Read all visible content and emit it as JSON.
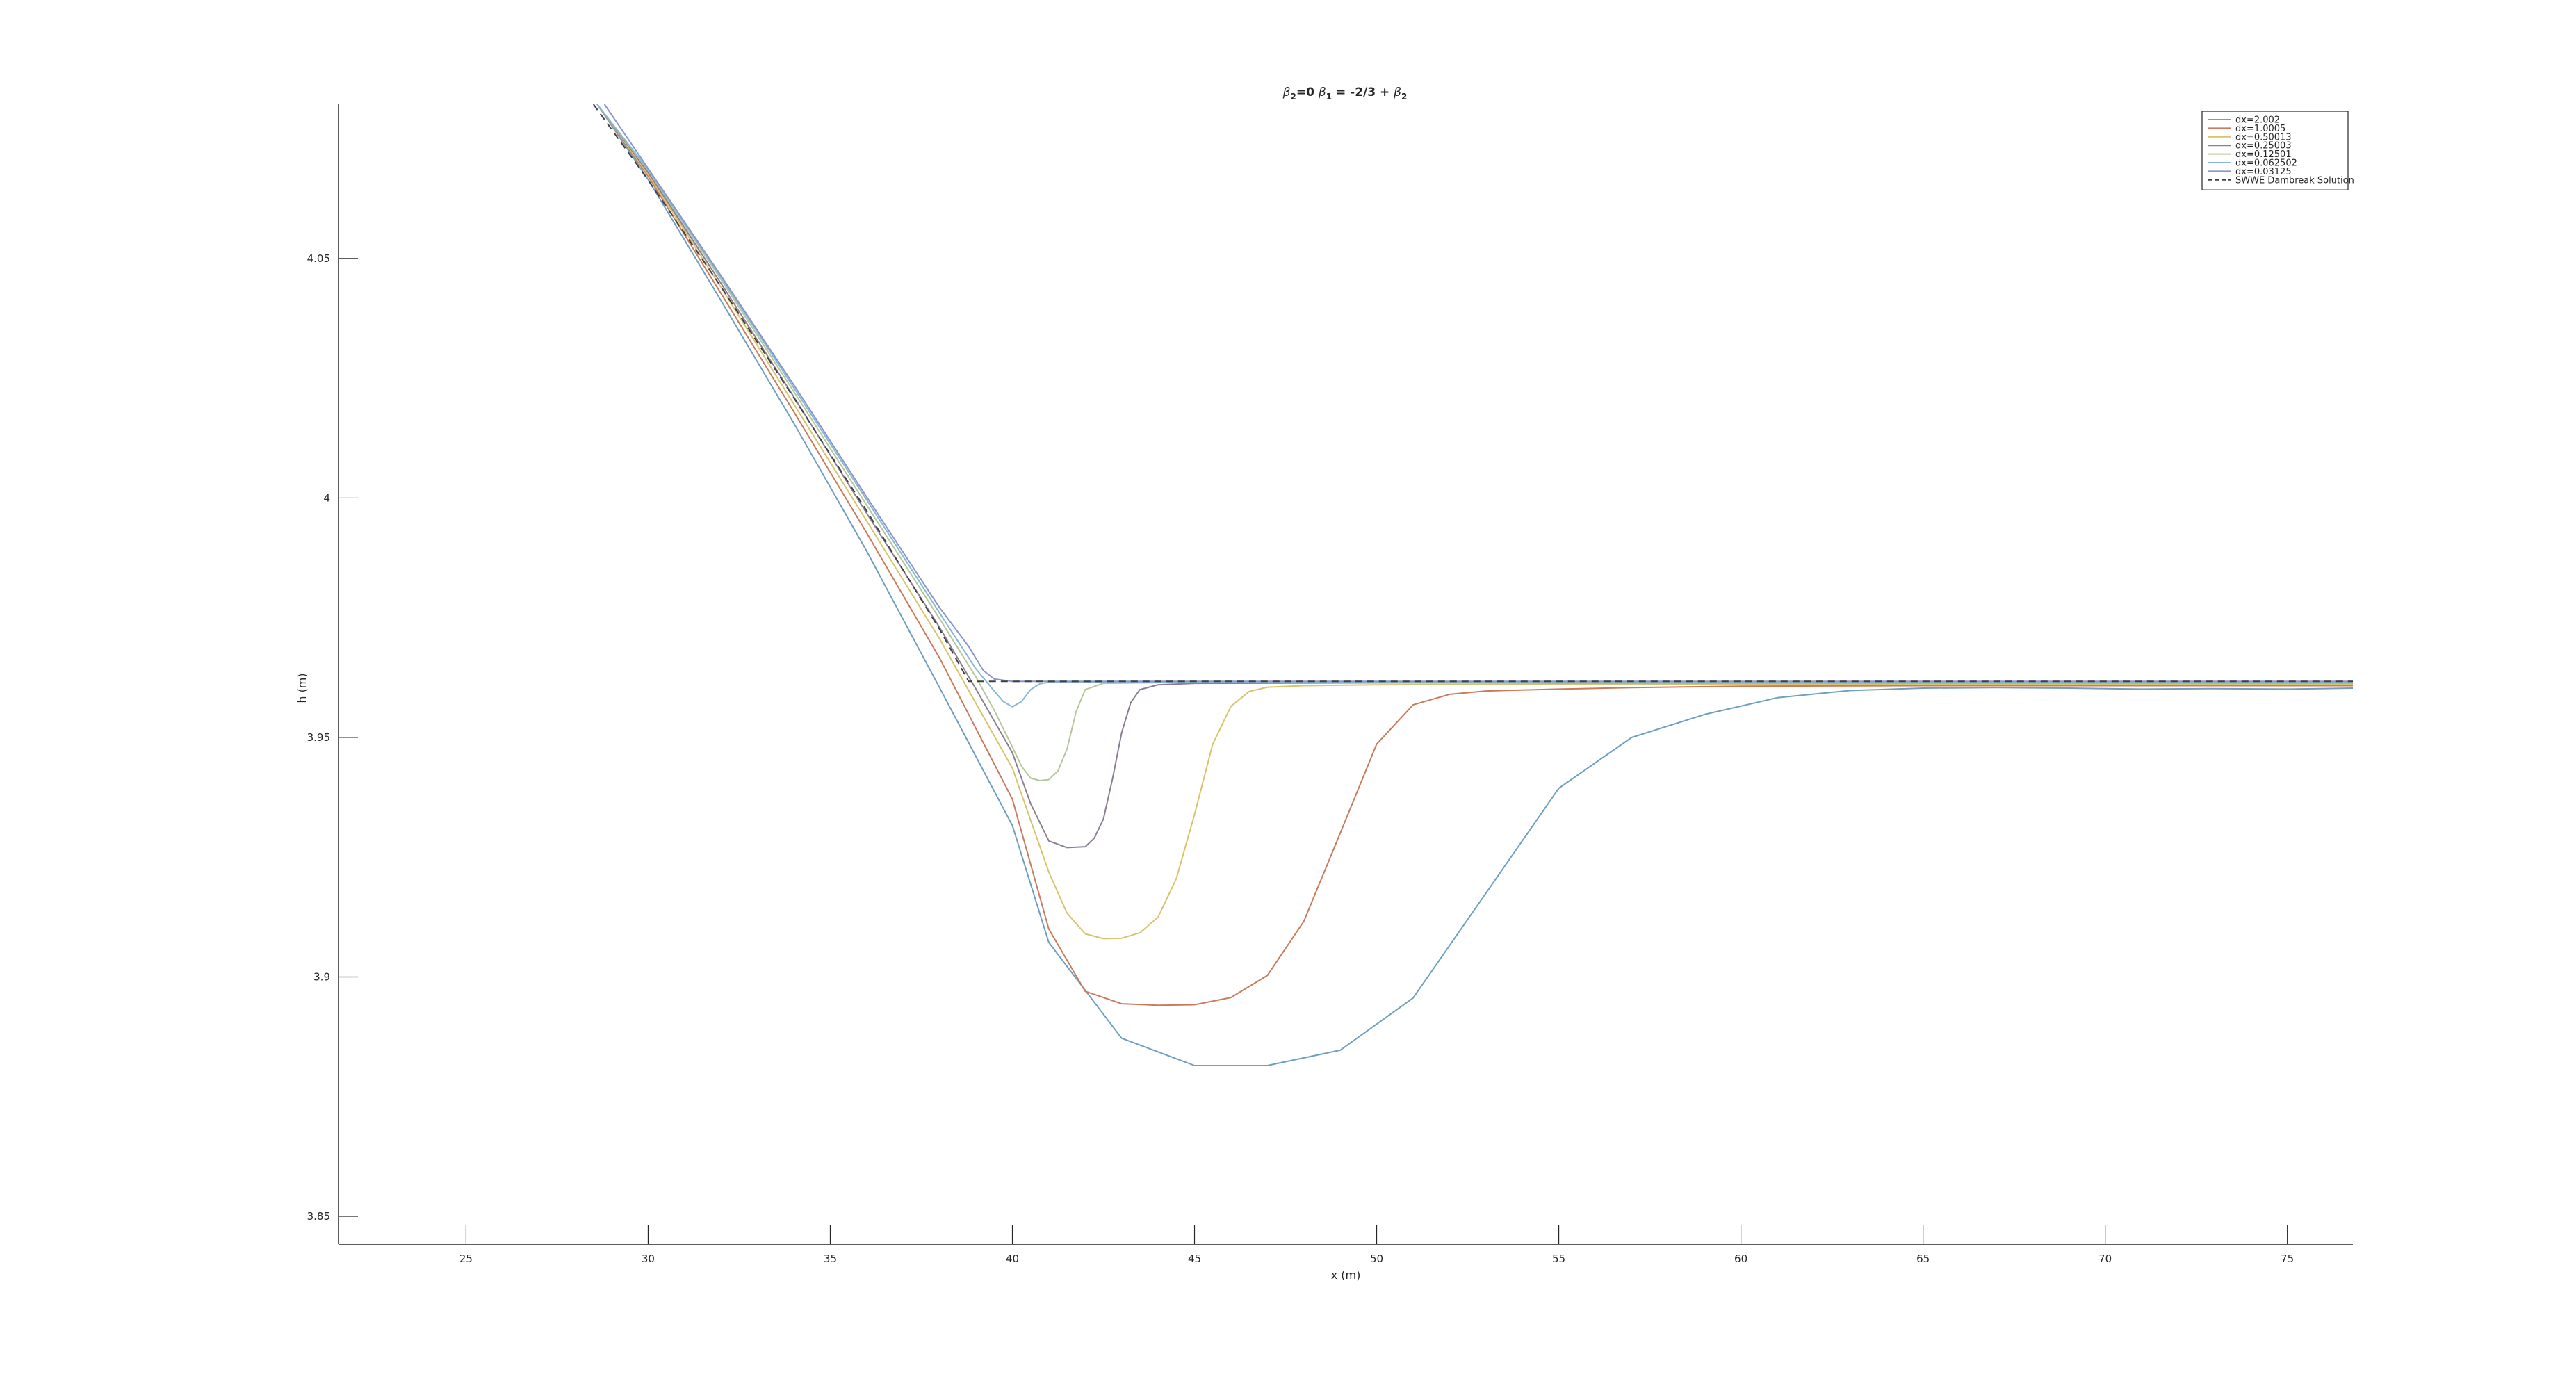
{
  "chart_data": {
    "type": "line",
    "title_parts": [
      {
        "text": "β",
        "sub": "2",
        "rest": "=0  "
      },
      {
        "text": "β",
        "sub": "1",
        "rest": " = -2/3 + "
      },
      {
        "text": "β",
        "sub": "2",
        "rest": ""
      }
    ],
    "xlabel": "x (m)",
    "ylabel": "h (m)",
    "xlim": [
      21.5,
      76.8
    ],
    "ylim": [
      3.8442,
      4.0822
    ],
    "xticks": [
      25,
      30,
      35,
      40,
      45,
      50,
      55,
      60,
      65,
      70,
      75
    ],
    "xtick_labels": [
      "25",
      "30",
      "35",
      "40",
      "45",
      "50",
      "55",
      "60",
      "65",
      "70",
      "75"
    ],
    "yticks": [
      3.85,
      3.9,
      3.95,
      4,
      4.05
    ],
    "ytick_labels": [
      "3.85",
      "3.9",
      "3.95",
      "4",
      "4.05"
    ],
    "grid": false,
    "legend_position": "top-right",
    "series": [
      {
        "name": "dx=2.002",
        "color": "#6f9fc0",
        "dash": false,
        "x": [
          28.6,
          30,
          32,
          34,
          36,
          38,
          40,
          41,
          43,
          45,
          47,
          49,
          51,
          53,
          55,
          57,
          59,
          61,
          63,
          65,
          67,
          69,
          71,
          73,
          75,
          76.8
        ],
        "y": [
          4.0822,
          4.0665,
          4.0412,
          4.0156,
          3.9889,
          3.9604,
          3.9316,
          3.9072,
          3.8872,
          3.8815,
          3.8815,
          3.8847,
          3.8956,
          3.9175,
          3.9394,
          3.95,
          3.9548,
          3.9583,
          3.9598,
          3.9603,
          3.9604,
          3.9603,
          3.9601,
          3.9602,
          3.9601,
          3.9603
        ]
      },
      {
        "name": "dx=1.0005",
        "color": "#c97b5b",
        "dash": false,
        "x": [
          28.6,
          30,
          32,
          34,
          36,
          38,
          40,
          41,
          42,
          43,
          44,
          45,
          46,
          47,
          48,
          49,
          50,
          51,
          52,
          53,
          55,
          57,
          60,
          65,
          70,
          76.8
        ],
        "y": [
          4.0822,
          4.0672,
          4.0427,
          4.018,
          3.9927,
          3.9666,
          3.9371,
          3.91,
          3.897,
          3.8944,
          3.8941,
          3.8942,
          3.8957,
          3.9003,
          3.9116,
          3.93,
          3.9486,
          3.9568,
          3.959,
          3.9597,
          3.9601,
          3.9604,
          3.9607,
          3.9608,
          3.9608,
          3.9608
        ]
      },
      {
        "name": "dx=0.50013",
        "color": "#d8c46a",
        "dash": false,
        "x": [
          28.6,
          30,
          32,
          34,
          36,
          38,
          40,
          41,
          41.5,
          42,
          42.5,
          43,
          43.5,
          44,
          44.5,
          45,
          45.5,
          46,
          46.5,
          47,
          48,
          50,
          55,
          60,
          70,
          76.8
        ],
        "y": [
          4.0822,
          4.0676,
          4.044,
          4.0196,
          3.9952,
          3.9706,
          3.9436,
          3.9219,
          3.9133,
          3.909,
          3.908,
          3.9081,
          3.9092,
          3.9125,
          3.9205,
          3.9339,
          3.9486,
          3.9565,
          3.9596,
          3.9605,
          3.9608,
          3.961,
          3.9611,
          3.9611,
          3.9611,
          3.9611
        ]
      },
      {
        "name": "dx=0.25003",
        "color": "#8b7d92",
        "dash": false,
        "x": [
          28.6,
          30,
          32,
          34,
          36,
          38,
          39,
          40,
          40.5,
          41,
          41.5,
          42,
          42.25,
          42.5,
          42.75,
          43,
          43.25,
          43.5,
          44,
          45,
          50,
          60,
          70,
          76.8
        ],
        "y": [
          4.0822,
          4.068,
          4.0448,
          4.0211,
          3.9968,
          3.973,
          3.9601,
          3.9468,
          3.9362,
          3.9284,
          3.927,
          3.9272,
          3.929,
          3.933,
          3.9414,
          3.951,
          3.9573,
          3.96,
          3.961,
          3.9613,
          3.9614,
          3.9614,
          3.9614,
          3.9614
        ]
      },
      {
        "name": "dx=0.12501",
        "color": "#b6c79a",
        "dash": false,
        "x": [
          28.6,
          30,
          32,
          34,
          36,
          38,
          39,
          39.5,
          40,
          40.25,
          40.5,
          40.75,
          41,
          41.25,
          41.5,
          41.75,
          42,
          42.5,
          45,
          50,
          60,
          70,
          76.8
        ],
        "y": [
          4.0822,
          4.0684,
          4.0456,
          4.0222,
          3.9985,
          3.9748,
          3.9626,
          3.9557,
          3.948,
          3.944,
          3.9415,
          3.941,
          3.9412,
          3.943,
          3.9476,
          3.9554,
          3.96,
          3.9613,
          3.9615,
          3.9615,
          3.9615,
          3.9615,
          3.9615
        ]
      },
      {
        "name": "dx=0.062502",
        "color": "#86b9d4",
        "dash": false,
        "x": [
          28.6,
          30,
          32,
          34,
          36,
          38,
          39,
          39.5,
          39.75,
          40,
          40.25,
          40.5,
          40.75,
          41,
          42,
          45,
          50,
          60,
          70,
          76.8
        ],
        "y": [
          4.0822,
          4.0686,
          4.0461,
          4.023,
          3.9996,
          3.976,
          3.9643,
          3.9597,
          3.9575,
          3.9564,
          3.9575,
          3.96,
          3.9612,
          3.9615,
          3.9616,
          3.9616,
          3.9616,
          3.9616,
          3.9616,
          3.9616
        ]
      },
      {
        "name": "dx=0.03125",
        "color": "#8a95c9",
        "dash": false,
        "x": [
          28.8,
          30,
          32,
          34,
          36,
          38,
          38.8,
          39.2,
          39.5,
          40,
          42,
          45,
          50,
          60,
          70,
          76.8
        ],
        "y": [
          4.0822,
          4.0688,
          4.0464,
          4.0236,
          4.0002,
          3.9771,
          3.969,
          3.964,
          3.9622,
          3.9617,
          3.9617,
          3.9617,
          3.9617,
          3.9617,
          3.9617,
          3.9617
        ]
      },
      {
        "name": "SWWE Dambreak Solution",
        "color": "#404040",
        "dash": true,
        "x": [
          28.5,
          30,
          32,
          34,
          36,
          38,
          38.8,
          40,
          45,
          50,
          60,
          70,
          76.8
        ],
        "y": [
          4.0822,
          4.0664,
          4.0441,
          4.0209,
          3.9973,
          3.9726,
          3.9617,
          3.9617,
          3.9617,
          3.9617,
          3.9617,
          3.9617,
          3.9617
        ]
      }
    ]
  }
}
